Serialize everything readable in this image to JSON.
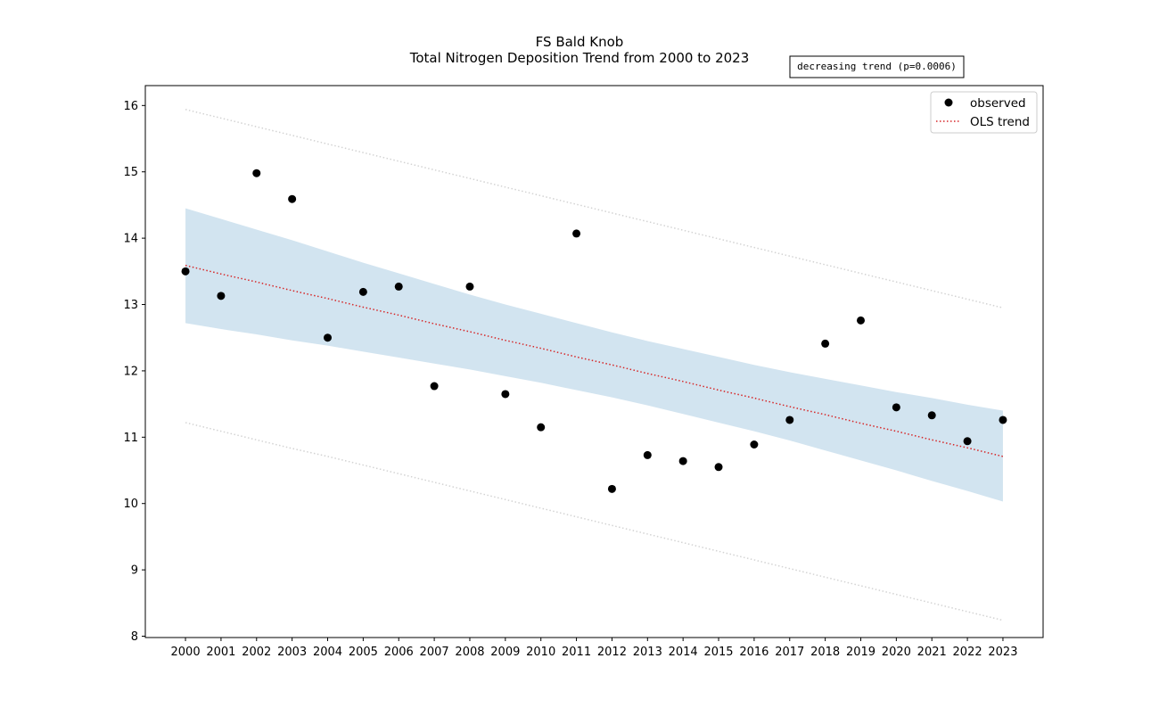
{
  "chart_data": {
    "type": "scatter",
    "title": "FS Bald Knob",
    "subtitle": "Total Nitrogen Deposition Trend from 2000 to 2023",
    "annotation": "decreasing trend (p=0.0006)",
    "xlabel": "",
    "ylabel": "",
    "x": [
      2000,
      2001,
      2002,
      2003,
      2004,
      2005,
      2006,
      2007,
      2008,
      2009,
      2010,
      2011,
      2012,
      2013,
      2014,
      2015,
      2016,
      2017,
      2018,
      2019,
      2020,
      2021,
      2022,
      2023
    ],
    "x_tick_labels": [
      "2000",
      "2001",
      "2002",
      "2003",
      "2004",
      "2005",
      "2006",
      "2007",
      "2008",
      "2009",
      "2010",
      "2011",
      "2012",
      "2013",
      "2014",
      "2015",
      "2016",
      "2017",
      "2018",
      "2019",
      "2020",
      "2021",
      "2022",
      "2023"
    ],
    "y_ticks": [
      8,
      9,
      10,
      11,
      12,
      13,
      14,
      15,
      16
    ],
    "y_tick_labels": [
      "8",
      "9",
      "10",
      "11",
      "12",
      "13",
      "14",
      "15",
      "16"
    ],
    "xlim": [
      1998.87,
      2024.13
    ],
    "ylim": [
      7.98,
      16.3
    ],
    "grid": false,
    "legend_position": "top-right",
    "series": [
      {
        "name": "observed",
        "kind": "scatter",
        "color": "#000000",
        "values": [
          13.5,
          13.13,
          14.98,
          14.59,
          12.5,
          13.19,
          13.27,
          11.77,
          13.27,
          11.65,
          11.15,
          14.07,
          10.22,
          10.73,
          10.64,
          10.55,
          10.89,
          11.26,
          12.41,
          12.76,
          11.45,
          11.33,
          10.94,
          11.26
        ]
      },
      {
        "name": "OLS trend",
        "kind": "line",
        "style": "dotted",
        "color": "#d62728",
        "values": [
          13.59,
          13.46,
          13.34,
          13.21,
          13.09,
          12.96,
          12.84,
          12.71,
          12.59,
          12.46,
          12.34,
          12.21,
          12.09,
          11.96,
          11.84,
          11.71,
          11.59,
          11.46,
          11.34,
          11.21,
          11.09,
          10.96,
          10.84,
          10.71
        ]
      }
    ],
    "confidence_band": {
      "color": "#1f77b4",
      "opacity": 0.2,
      "lower": [
        12.72,
        12.63,
        12.55,
        12.46,
        12.38,
        12.29,
        12.2,
        12.11,
        12.02,
        11.92,
        11.82,
        11.71,
        11.6,
        11.48,
        11.35,
        11.22,
        11.09,
        10.95,
        10.8,
        10.65,
        10.5,
        10.34,
        10.19,
        10.03
      ],
      "upper": [
        14.45,
        14.29,
        14.13,
        13.97,
        13.8,
        13.63,
        13.47,
        13.31,
        13.15,
        13.0,
        12.86,
        12.72,
        12.58,
        12.45,
        12.33,
        12.21,
        12.09,
        11.98,
        11.88,
        11.78,
        11.68,
        11.59,
        11.49,
        11.4
      ]
    },
    "prediction_band": {
      "color": "#d3d3d3",
      "style": "dotted",
      "lower": [
        11.22,
        11.09,
        10.96,
        10.83,
        10.71,
        10.58,
        10.45,
        10.32,
        10.19,
        10.06,
        9.93,
        9.8,
        9.67,
        9.54,
        9.41,
        9.28,
        9.15,
        9.02,
        8.89,
        8.76,
        8.63,
        8.5,
        8.37,
        8.24
      ],
      "upper": [
        15.94,
        15.81,
        15.68,
        15.55,
        15.42,
        15.29,
        15.16,
        15.03,
        14.9,
        14.77,
        14.64,
        14.51,
        14.38,
        14.25,
        14.12,
        13.99,
        13.86,
        13.73,
        13.6,
        13.47,
        13.34,
        13.21,
        13.08,
        12.95
      ]
    }
  }
}
